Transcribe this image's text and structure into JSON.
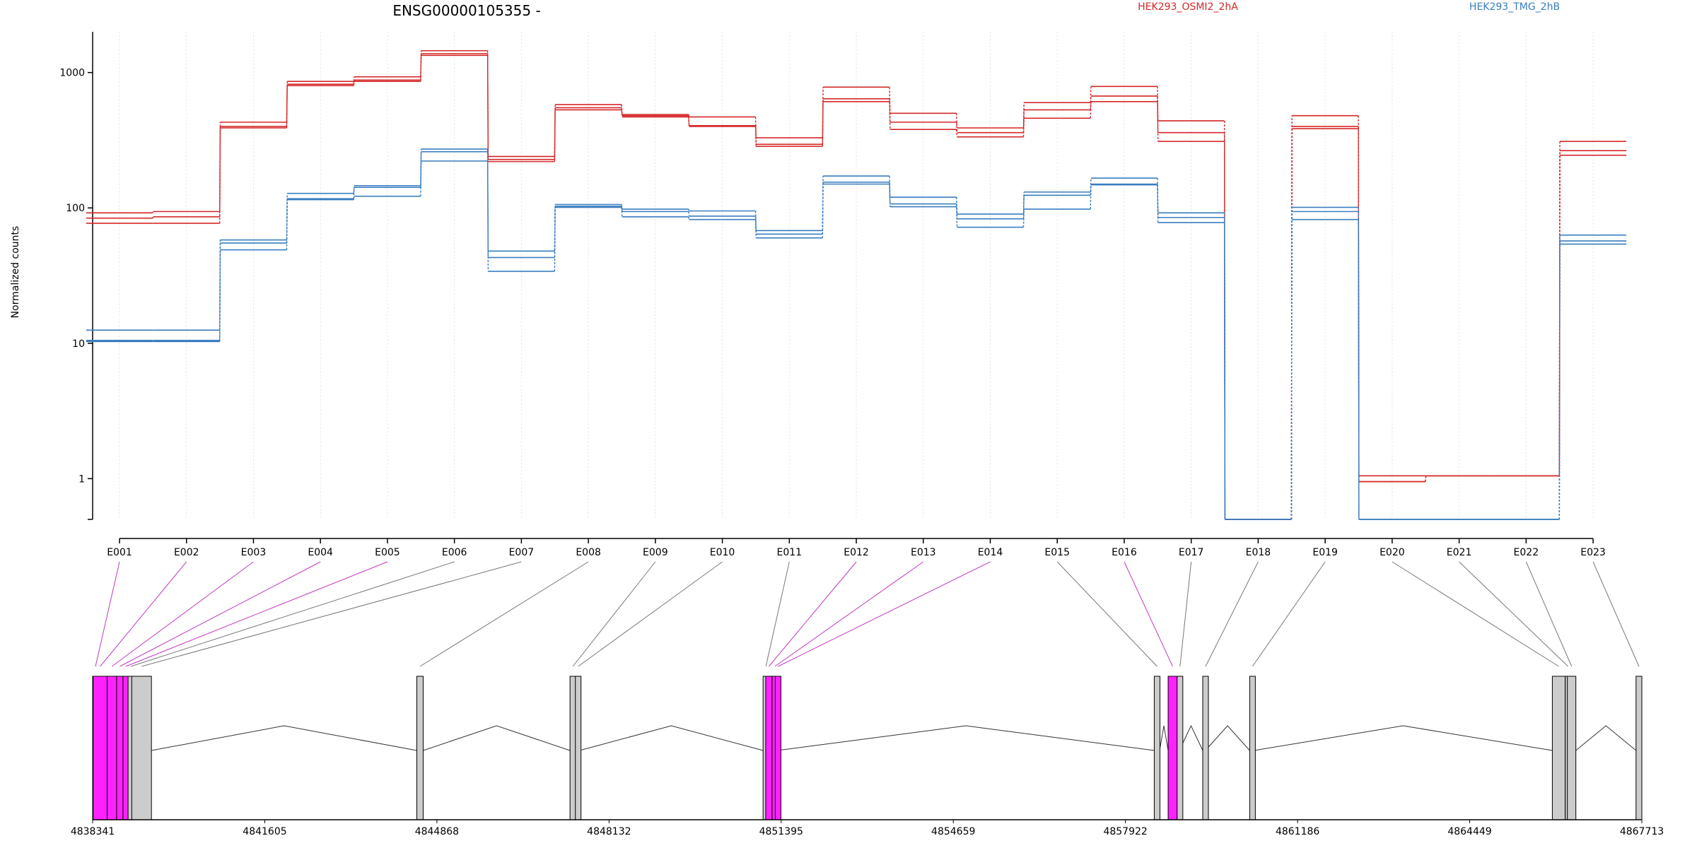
{
  "colors": {
    "series_a": "#d62728",
    "series_b": "#3a7dbf",
    "connector_highlight": "#c03ac0",
    "connector_plain": "#777777",
    "exon_highlight": "#ff22ff",
    "exon_plain": "#cccccc",
    "intron_line": "#333333",
    "grid": "#e3e3e3"
  },
  "chart_data": {
    "type": "line",
    "title": "ENSG00000105355 -",
    "ylabel": "Normalized counts",
    "xlabel": "",
    "yscale": "log",
    "ylim": [
      0.5,
      2000
    ],
    "yticks": [
      1,
      10,
      100,
      1000
    ],
    "ytick_labels": [
      "1",
      "10",
      "100",
      "1000"
    ],
    "grid": "vertical dotted at exon positions",
    "legend_placement": "top",
    "categories": [
      "E001",
      "E002",
      "E003",
      "E004",
      "E005",
      "E006",
      "E007",
      "E008",
      "E009",
      "E010",
      "E011",
      "E012",
      "E013",
      "E014",
      "E015",
      "E016",
      "E017",
      "E018",
      "E019",
      "E020",
      "E021",
      "E022",
      "E023"
    ],
    "series": [
      {
        "name": "HEK293_OSMI2_2hA",
        "group": "a",
        "values": [
          92,
          94,
          430,
          860,
          930,
          1450,
          240,
          580,
          490,
          470,
          330,
          780,
          500,
          390,
          600,
          790,
          440,
          0.5,
          480,
          1.05,
          1.05,
          1.05,
          310
        ]
      },
      {
        "name": "",
        "group": "a",
        "values": [
          84,
          86,
          400,
          820,
          880,
          1380,
          228,
          550,
          480,
          405,
          295,
          640,
          430,
          360,
          530,
          670,
          360,
          0.5,
          400,
          0.95,
          1.05,
          1.05,
          265
        ]
      },
      {
        "name": "",
        "group": "a",
        "values": [
          77,
          77,
          390,
          800,
          860,
          1340,
          220,
          530,
          470,
          400,
          285,
          610,
          380,
          335,
          460,
          610,
          310,
          0.5,
          385,
          0.95,
          1.05,
          1.05,
          245
        ]
      },
      {
        "name": "HEK293_TMG_2hB",
        "group": "b",
        "values": [
          12.5,
          12.5,
          58,
          128,
          146,
          272,
          48,
          106,
          98,
          95,
          68,
          172,
          120,
          90,
          131,
          166,
          92,
          0.5,
          101,
          0.5,
          0.5,
          0.5,
          63
        ]
      },
      {
        "name": "",
        "group": "b",
        "values": [
          10.5,
          10.5,
          55,
          117,
          142,
          260,
          43,
          103,
          94,
          87,
          64,
          155,
          107,
          83,
          124,
          150,
          85,
          0.5,
          94,
          0.5,
          0.5,
          0.5,
          57
        ]
      },
      {
        "name": "",
        "group": "b",
        "values": [
          10.3,
          10.3,
          49,
          115,
          122,
          222,
          34,
          101,
          86,
          82,
          60,
          150,
          102,
          72,
          98,
          148,
          78,
          0.5,
          82,
          0.5,
          0.5,
          0.5,
          54
        ]
      }
    ],
    "genome_axis": {
      "ticks": [
        4838341,
        4841605,
        4844868,
        4848132,
        4851395,
        4854659,
        4857922,
        4861186,
        4864449,
        4867713
      ],
      "tick_labels": [
        "4838341",
        "4841605",
        "4844868",
        "4848132",
        "4851395",
        "4854659",
        "4857922",
        "4861186",
        "4864449",
        "4867713"
      ],
      "range": [
        4838341,
        4867713
      ]
    },
    "exons": [
      {
        "id": "E001",
        "start": 4838341,
        "end": 4838351,
        "highlight": true
      },
      {
        "id": "E002",
        "start": 4838351,
        "end": 4838617,
        "highlight": true
      },
      {
        "id": "E003",
        "start": 4838617,
        "end": 4838796,
        "highlight": true
      },
      {
        "id": "E004",
        "start": 4838796,
        "end": 4838917,
        "highlight": true
      },
      {
        "id": "E005",
        "start": 4838917,
        "end": 4839013,
        "highlight": true
      },
      {
        "id": "E006",
        "start": 4839013,
        "end": 4839083,
        "highlight": false
      },
      {
        "id": "E007",
        "start": 4839083,
        "end": 4839456,
        "highlight": false
      },
      {
        "id": "E008",
        "start": 4844487,
        "end": 4844608,
        "highlight": false
      },
      {
        "id": "E009",
        "start": 4847392,
        "end": 4847493,
        "highlight": false
      },
      {
        "id": "E010",
        "start": 4847493,
        "end": 4847573,
        "highlight": false
      },
      {
        "id": "E011",
        "start": 4851052,
        "end": 4851102,
        "highlight": false
      },
      {
        "id": "E012",
        "start": 4851102,
        "end": 4851223,
        "highlight": true
      },
      {
        "id": "E013",
        "start": 4851223,
        "end": 4851283,
        "highlight": true
      },
      {
        "id": "E014",
        "start": 4851283,
        "end": 4851324,
        "highlight": true
      },
      {
        "id": "E015",
        "start": 4858469,
        "end": 4858570,
        "highlight": false
      },
      {
        "id": "E016",
        "start": 4858732,
        "end": 4858903,
        "highlight": true
      },
      {
        "id": "E017",
        "start": 4858903,
        "end": 4858944,
        "highlight": false
      },
      {
        "id": "E018",
        "start": 4859388,
        "end": 4859439,
        "highlight": false
      },
      {
        "id": "E019",
        "start": 4860278,
        "end": 4860359,
        "highlight": false
      },
      {
        "id": "E020",
        "start": 4866016,
        "end": 4866260,
        "highlight": false
      },
      {
        "id": "E021",
        "start": 4866260,
        "end": 4866301,
        "highlight": false
      },
      {
        "id": "E022",
        "start": 4866301,
        "end": 4866462,
        "highlight": false
      },
      {
        "id": "E023",
        "start": 4867603,
        "end": 4867713,
        "highlight": false
      }
    ]
  }
}
